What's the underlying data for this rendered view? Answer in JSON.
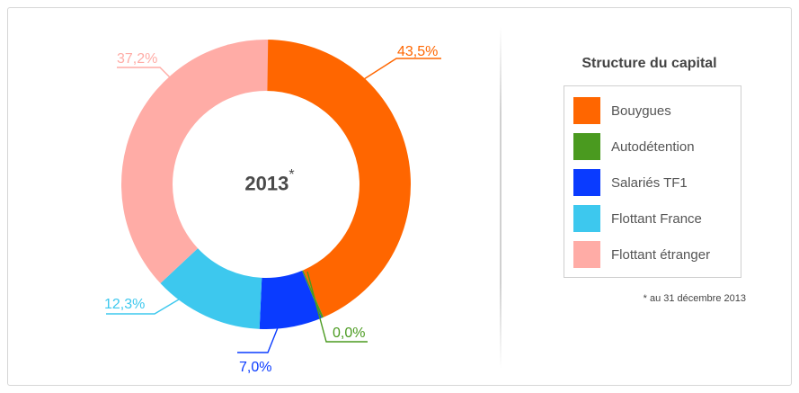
{
  "chart_data": {
    "type": "pie",
    "center_label": "2013",
    "center_marker": "*",
    "categories": [
      "Bouygues",
      "Autodétention",
      "Salariés TF1",
      "Flottant France",
      "Flottant étranger"
    ],
    "values": [
      43.5,
      0.0,
      7.0,
      12.3,
      37.2
    ],
    "value_labels": [
      "43,5%",
      "0,0%",
      "7,0%",
      "12,3%",
      "37,2%"
    ],
    "colors": [
      "#ff6600",
      "#4a9a1f",
      "#0a3bff",
      "#3dc8ee",
      "#ffaca6"
    ],
    "legend_title": "Structure du capital",
    "legend_position": "right",
    "footnote": "* au 31 décembre 2013"
  }
}
